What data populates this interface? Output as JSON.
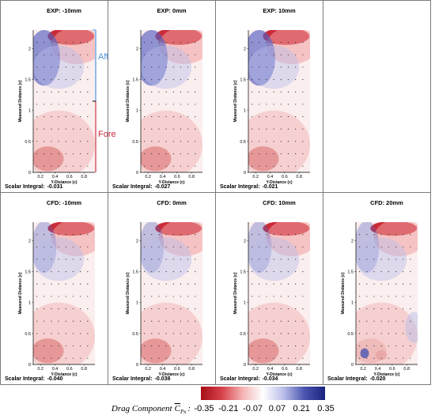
{
  "chart_data": [
    {
      "type": "heatmap",
      "title": "EXP: -10mm",
      "xlabel": "Y-Distance (c)",
      "ylabel": "Measured Distance (c)",
      "xticks": [
        "0.2",
        "0.4",
        "0.6",
        "0.8"
      ],
      "yticks": [
        "0",
        "0.5",
        "1",
        "1.5",
        "2"
      ],
      "xlim": [
        0.1,
        0.95
      ],
      "ylim": [
        0,
        2.3
      ],
      "scalar_integral_label": "Scalar Integral:",
      "scalar_integral": "-0.031",
      "annotations": [
        {
          "text": "Aft",
          "region": [
            1.15,
            2.3
          ],
          "color": "#4a90d9"
        },
        {
          "text": "Fore",
          "region": [
            0,
            1.15
          ],
          "color": "#cc2a3a"
        }
      ]
    },
    {
      "type": "heatmap",
      "title": "EXP: 0mm",
      "xlabel": "Y-Distance (c)",
      "ylabel": "Measured Distance (c)",
      "xticks": [
        "0.2",
        "0.4",
        "0.6",
        "0.8"
      ],
      "yticks": [
        "0",
        "0.5",
        "1",
        "1.5",
        "2"
      ],
      "xlim": [
        0.1,
        0.95
      ],
      "ylim": [
        0,
        2.3
      ],
      "scalar_integral_label": "Scalar Integral:",
      "scalar_integral": "-0.027"
    },
    {
      "type": "heatmap",
      "title": "EXP: 10mm",
      "xlabel": "Y-Distance (c)",
      "ylabel": "Measured Distance (c)",
      "xticks": [
        "0.2",
        "0.4",
        "0.6",
        "0.8"
      ],
      "yticks": [
        "0",
        "0.5",
        "1",
        "1.5",
        "2"
      ],
      "xlim": [
        0.1,
        0.95
      ],
      "ylim": [
        0,
        2.3
      ],
      "scalar_integral_label": "Scalar Integral:",
      "scalar_integral": "-0.021"
    },
    {
      "type": "heatmap",
      "title": "CFD: -10mm",
      "xlabel": "Y-Distance (c)",
      "ylabel": "Measured Distance (c)",
      "xticks": [
        "0.2",
        "0.4",
        "0.6",
        "0.8"
      ],
      "yticks": [
        "0",
        "0.5",
        "1",
        "1.5",
        "2"
      ],
      "xlim": [
        0.1,
        0.95
      ],
      "ylim": [
        0,
        2.3
      ],
      "scalar_integral_label": "Scalar Integral:",
      "scalar_integral": "-0.040"
    },
    {
      "type": "heatmap",
      "title": "CFD: 0mm",
      "xlabel": "Y-Distance (c)",
      "ylabel": "Measured Distance (c)",
      "xticks": [
        "0.2",
        "0.4",
        "0.6",
        "0.8"
      ],
      "yticks": [
        "0",
        "0.5",
        "1",
        "1.5",
        "2"
      ],
      "xlim": [
        0.1,
        0.95
      ],
      "ylim": [
        0,
        2.3
      ],
      "scalar_integral_label": "Scalar Integral:",
      "scalar_integral": "-0.038"
    },
    {
      "type": "heatmap",
      "title": "CFD: 10mm",
      "xlabel": "Y-Distance (c)",
      "ylabel": "Measured Distance (c)",
      "xticks": [
        "0.2",
        "0.4",
        "0.6",
        "0.8"
      ],
      "yticks": [
        "0",
        "0.5",
        "1",
        "1.5",
        "2"
      ],
      "xlim": [
        0.1,
        0.95
      ],
      "ylim": [
        0,
        2.3
      ],
      "scalar_integral_label": "Scalar Integral:",
      "scalar_integral": "-0.034"
    },
    {
      "type": "heatmap",
      "title": "CFD: 20mm",
      "xlabel": "Y-Distance (c)",
      "ylabel": "Measured Distance (c)",
      "xticks": [
        "0.2",
        "0.4",
        "0.6",
        "0.8"
      ],
      "yticks": [
        "0",
        "0.5",
        "1",
        "1.5",
        "2"
      ],
      "xlim": [
        0.1,
        0.95
      ],
      "ylim": [
        0,
        2.3
      ],
      "scalar_integral_label": "Scalar Integral:",
      "scalar_integral": "-0.020"
    }
  ],
  "colorbar": {
    "label": "Drag Component",
    "symbol": "C",
    "subscript": "Px",
    "separator": ":",
    "ticks": [
      "-0.35",
      "-0.21",
      "-0.07",
      "0.07",
      "0.21",
      "0.35"
    ],
    "colors": [
      "#a50f15",
      "#d6404a",
      "#f4b2b2",
      "#ffffff",
      "#b9bde8",
      "#4a56b0",
      "#1a237e"
    ]
  }
}
